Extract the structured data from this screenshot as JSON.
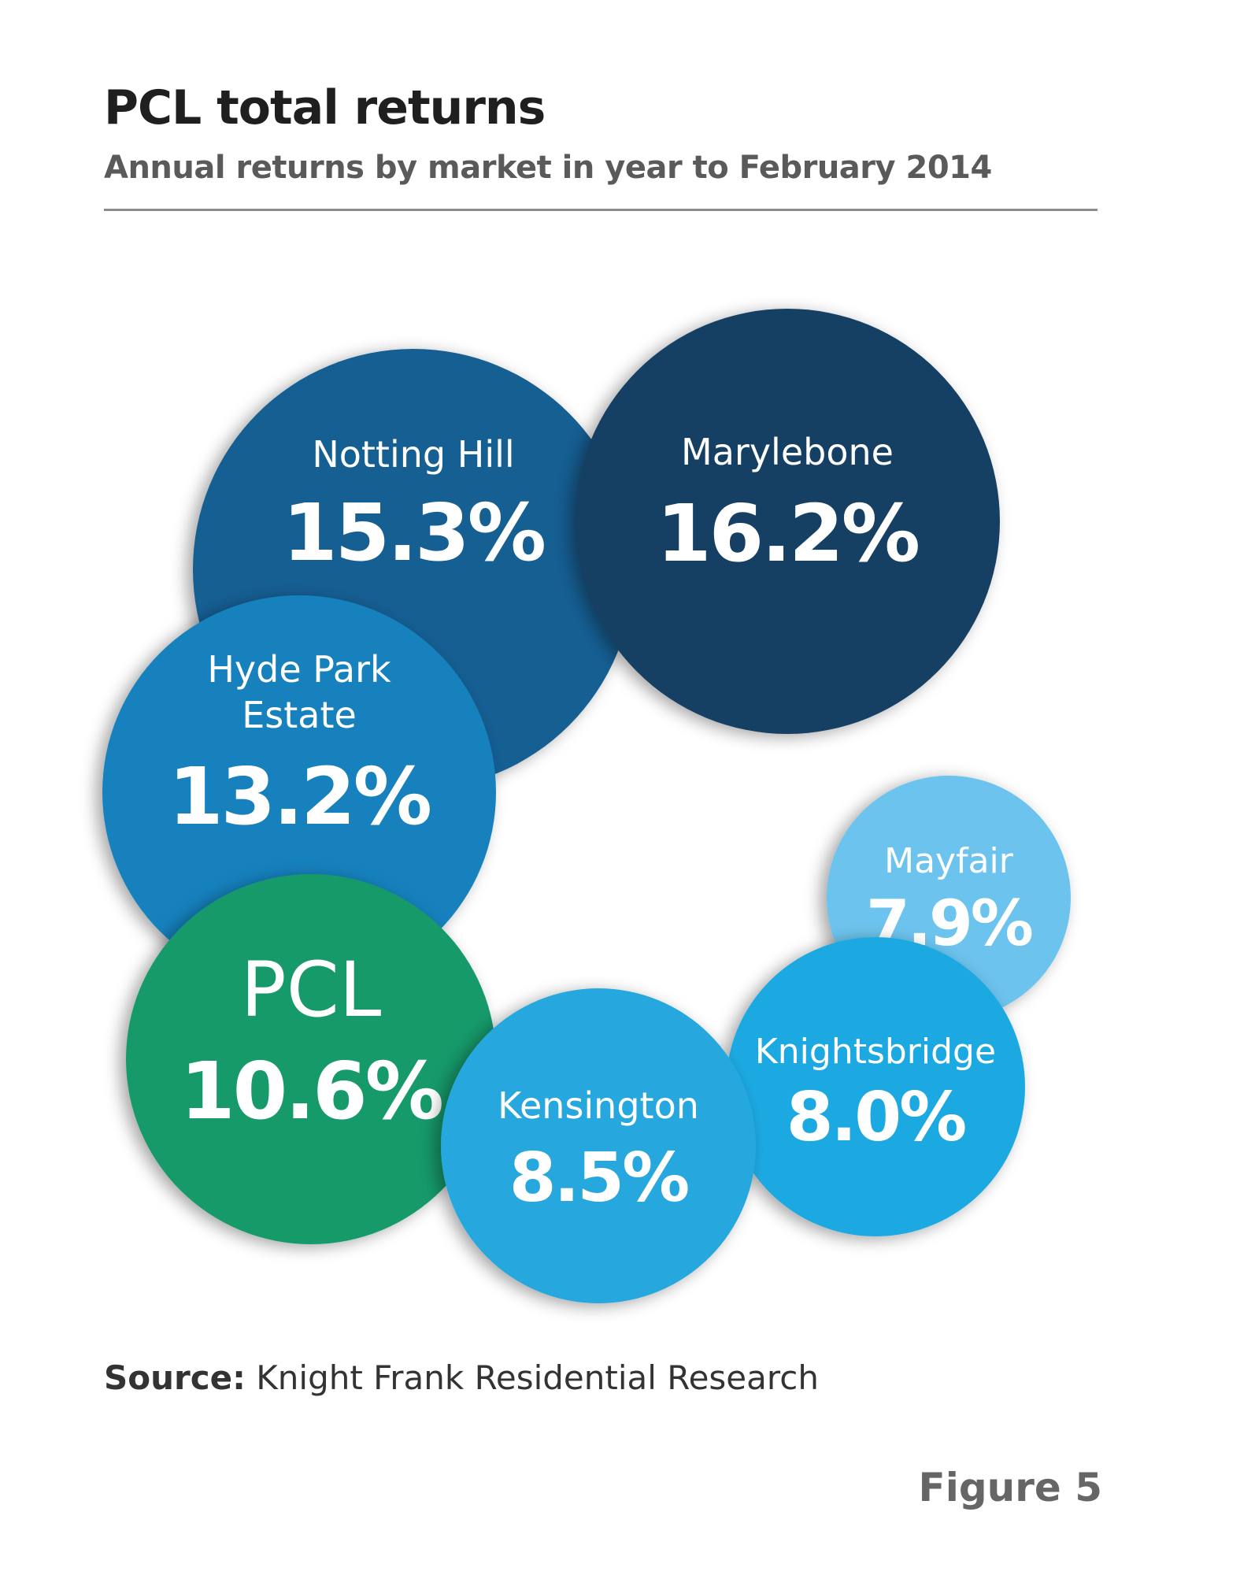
{
  "chart_data": {
    "type": "bubble",
    "title": "PCL total returns",
    "subtitle": "Annual returns by market in year to February 2014",
    "unit": "%",
    "series": [
      {
        "label": "Marylebone",
        "value": 16.2,
        "value_text": "16.2%",
        "color": "#143f63"
      },
      {
        "label": "Notting Hill",
        "value": 15.3,
        "value_text": "15.3%",
        "color": "#135e93"
      },
      {
        "label": "Hyde Park Estate",
        "label_lines": [
          "Hyde Park",
          "Estate"
        ],
        "value": 13.2,
        "value_text": "13.2%",
        "color": "#1681bd"
      },
      {
        "label": "PCL",
        "value": 10.6,
        "value_text": "10.6%",
        "color": "#139a6a"
      },
      {
        "label": "Kensington",
        "value": 8.5,
        "value_text": "8.5%",
        "color": "#27a7de"
      },
      {
        "label": "Knightsbridge",
        "value": 8.0,
        "value_text": "8.0%",
        "color": "#1fa9e2"
      },
      {
        "label": "Mayfair",
        "value": 7.9,
        "value_text": "7.9%",
        "color": "#6cc3ed"
      }
    ]
  },
  "source": {
    "prefix": "Source:",
    "text": " Knight Frank Residential Research"
  },
  "figure_label": "Figure 5"
}
